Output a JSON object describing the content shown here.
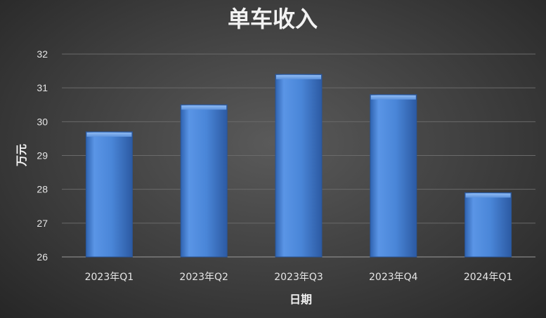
{
  "chart_data": {
    "type": "bar",
    "title": "单车收入",
    "xlabel": "日期",
    "ylabel": "万元",
    "categories": [
      "2023年Q1",
      "2023年Q2",
      "2023年Q3",
      "2023年Q4",
      "2024年Q1"
    ],
    "values": [
      29.7,
      30.5,
      31.4,
      30.8,
      27.9
    ],
    "ylim": [
      26,
      32
    ],
    "yticks": [
      "26",
      "27",
      "28",
      "29",
      "30",
      "31",
      "32"
    ],
    "grid": true,
    "legend": "none",
    "bar_color": "#4a86d8"
  }
}
